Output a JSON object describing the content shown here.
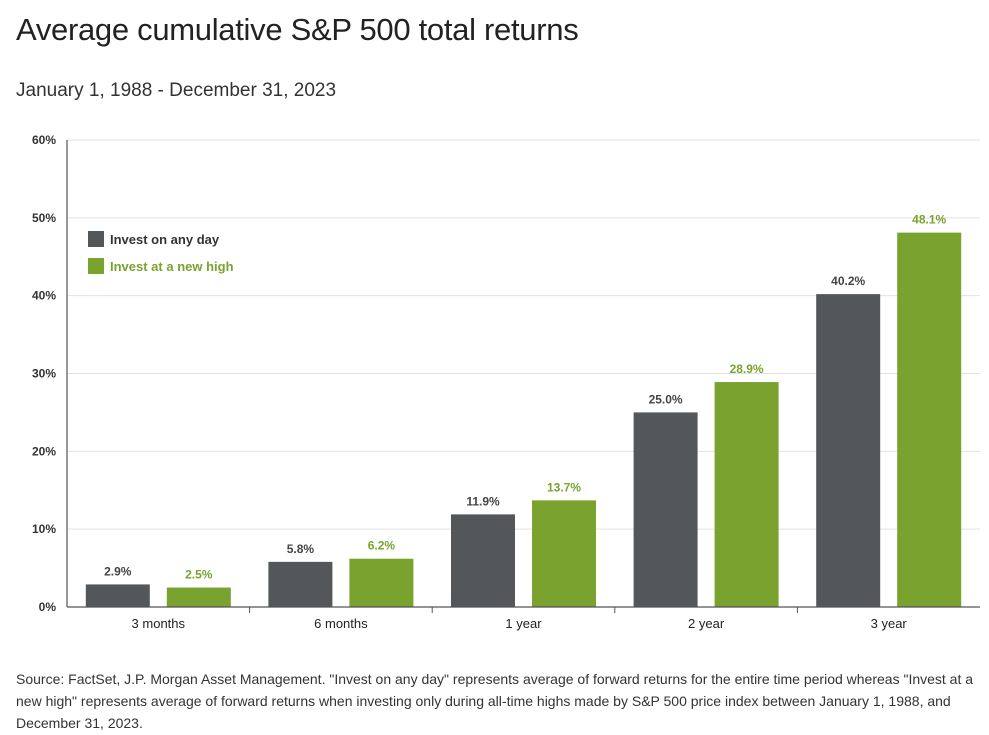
{
  "header": {
    "title": "Average cumulative S&P 500 total returns",
    "subtitle": "January 1, 1988 - December 31, 2023"
  },
  "footer": {
    "source": "Source: FactSet, J.P. Morgan Asset Management. \"Invest on any day\" represents average of forward returns for the entire time period whereas \"Invest at a new high\" represents average of forward returns when investing only during all-time highs made by S&P 500 price index between January 1, 1988, and December 31, 2023."
  },
  "chart_data": {
    "type": "bar",
    "title": "Average cumulative S&P 500 total returns",
    "subtitle": "January 1, 1988 - December 31, 2023",
    "categories": [
      "3 months",
      "6 months",
      "1 year",
      "2 year",
      "3 year"
    ],
    "series": [
      {
        "name": "Invest on any day",
        "color": "#54575a",
        "values": [
          2.9,
          5.8,
          11.9,
          25.0,
          40.2
        ],
        "labels": [
          "2.9%",
          "5.8%",
          "11.9%",
          "25.0%",
          "40.2%"
        ]
      },
      {
        "name": "Invest at a new high",
        "color": "#7aa22f",
        "values": [
          2.5,
          6.2,
          13.7,
          28.9,
          48.1
        ],
        "labels": [
          "2.5%",
          "6.2%",
          "13.7%",
          "28.9%",
          "48.1%"
        ]
      }
    ],
    "ylim": [
      0,
      60
    ],
    "yticks": [
      0,
      10,
      20,
      30,
      40,
      50,
      60
    ],
    "ytick_labels": [
      "0%",
      "10%",
      "20%",
      "30%",
      "40%",
      "50%",
      "60%"
    ],
    "grid": true,
    "legend_position": "top-left"
  }
}
